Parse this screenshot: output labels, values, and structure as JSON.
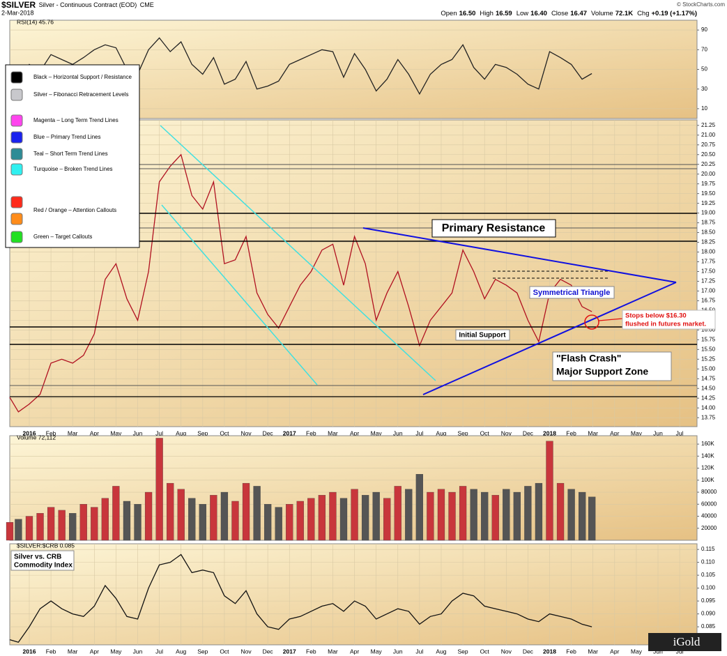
{
  "header": {
    "symbol": "$SILVER",
    "description": "Silver - Continuous Contract (EOD)",
    "exchange": "CME",
    "date": "2-Mar-2018",
    "source": "© StockCharts.com",
    "quote": [
      {
        "label": "Open",
        "value": "16.50"
      },
      {
        "label": "High",
        "value": "16.59"
      },
      {
        "label": "Low",
        "value": "16.40"
      },
      {
        "label": "Close",
        "value": "16.47"
      },
      {
        "label": "Volume",
        "value": "72.1K"
      },
      {
        "label": "Chg",
        "value": "+0.19 (+1.17%)"
      }
    ]
  },
  "legend": {
    "entries": [
      {
        "label": "Black – Horizontal Support / Resistance",
        "colors": [
          "#000000"
        ]
      },
      {
        "label": "Silver – Fibonacci Retracement Levels",
        "colors": [
          "#c8c8cc"
        ]
      },
      {
        "label": "Magenta – Long Term Trend Lines",
        "colors": [
          "#ff44ee"
        ]
      },
      {
        "label": "Blue – Primary Trend Lines",
        "colors": [
          "#1a22ee"
        ]
      },
      {
        "label": "Teal – Short Term Trend Lines",
        "colors": [
          "#2e8c96"
        ]
      },
      {
        "label": "Turquoise – Broken Trend Lines",
        "colors": [
          "#30f0f0"
        ]
      },
      {
        "label": "Red / Orange – Attention Callouts",
        "colors": [
          "#ff2a1a",
          "#ff8c1a"
        ]
      },
      {
        "label": "Green – Target Callouts",
        "colors": [
          "#22e022"
        ]
      }
    ]
  },
  "annotations": {
    "primary_resistance": "Primary Resistance",
    "symmetrical_triangle": "Symmetrical Triangle",
    "initial_support": "Initial Support",
    "flash_crash": [
      "\"Flash Crash\"",
      "Major Support Zone"
    ],
    "stops": [
      "Stops below $16.30",
      "flushed in futures market."
    ],
    "ratio_note": [
      "Silver vs. CRB",
      "Commodity Index"
    ],
    "logo": "iGold"
  },
  "chart_data": [
    {
      "type": "line",
      "label": "RSI(14) 45.76",
      "color": "#222222",
      "x": [
        -0.9,
        -0.5,
        0,
        0.5,
        1,
        1.5,
        2,
        2.5,
        3,
        3.5,
        4,
        4.5,
        5,
        5.5,
        6,
        6.5,
        7,
        7.5,
        8,
        8.5,
        9,
        9.5,
        10,
        10.5,
        11,
        11.5,
        12,
        12.5,
        13,
        13.5,
        14,
        14.5,
        15,
        15.5,
        16,
        16.5,
        17,
        17.5,
        18,
        18.5,
        19,
        19.5,
        20,
        20.5,
        21,
        21.5,
        22,
        22.5,
        23,
        23.5,
        24,
        24.5,
        25,
        25.5,
        25.95
      ],
      "values": [
        50,
        40,
        55,
        48,
        65,
        60,
        55,
        62,
        70,
        75,
        72,
        50,
        45,
        70,
        82,
        68,
        78,
        55,
        45,
        62,
        35,
        40,
        58,
        30,
        33,
        38,
        55,
        60,
        65,
        70,
        68,
        42,
        66,
        50,
        28,
        40,
        60,
        45,
        25,
        45,
        55,
        60,
        75,
        52,
        40,
        55,
        52,
        45,
        35,
        30,
        68,
        62,
        55,
        40,
        45.76
      ],
      "xlim": [
        -0.9,
        30.8
      ],
      "ylim": [
        0,
        100
      ],
      "yticks": [
        10,
        30,
        50,
        70,
        90
      ],
      "grid": true
    },
    {
      "type": "line",
      "color": "#b01020",
      "x": [
        -0.9,
        -0.5,
        0,
        0.5,
        1,
        1.5,
        2,
        2.5,
        3,
        3.5,
        4,
        4.5,
        5,
        5.5,
        6,
        6.5,
        7,
        7.5,
        8,
        8.5,
        9,
        9.5,
        10,
        10.5,
        11,
        11.5,
        12,
        12.5,
        13,
        13.5,
        14,
        14.5,
        15,
        15.5,
        16,
        16.5,
        17,
        17.5,
        18,
        18.5,
        19,
        19.5,
        20,
        20.5,
        21,
        21.5,
        22,
        22.5,
        23,
        23.5,
        24,
        24.5,
        25,
        25.5,
        25.95
      ],
      "values": [
        14.27,
        13.9,
        14.1,
        14.35,
        15.15,
        15.25,
        15.15,
        15.35,
        15.9,
        17.3,
        17.7,
        16.8,
        16.25,
        17.5,
        19.8,
        20.2,
        20.5,
        19.45,
        19.1,
        19.8,
        17.7,
        17.8,
        18.4,
        16.95,
        16.4,
        16.05,
        16.6,
        17.15,
        17.5,
        18.05,
        18.2,
        17.15,
        18.4,
        17.7,
        16.25,
        16.95,
        17.5,
        16.6,
        15.6,
        16.25,
        16.6,
        16.95,
        18.05,
        17.5,
        16.8,
        17.3,
        17.15,
        16.95,
        16.25,
        15.7,
        16.95,
        17.3,
        17.15,
        16.6,
        16.47
      ],
      "xlim": [
        -0.9,
        30.8
      ],
      "ylim": [
        13.52,
        21.39
      ],
      "yticks": [
        13.75,
        {
          "value": 14,
          "label": "14.00"
        },
        14.25,
        {
          "value": 14.5,
          "label": "14.50"
        },
        14.75,
        {
          "value": 15,
          "label": "15.00"
        },
        15.25,
        {
          "value": 15.5,
          "label": "15.50"
        },
        15.75,
        {
          "value": 16,
          "label": "16.00"
        },
        16.25,
        {
          "value": 16.5,
          "label": "16.50"
        },
        16.75,
        {
          "value": 17,
          "label": "17.00"
        },
        17.25,
        {
          "value": 17.5,
          "label": "17.50"
        },
        17.75,
        {
          "value": 18,
          "label": "18.00"
        },
        18.25,
        {
          "value": 18.5,
          "label": "18.50"
        },
        18.75,
        {
          "value": 19,
          "label": "19.00"
        },
        19.25,
        {
          "value": 19.5,
          "label": "19.50"
        },
        19.75,
        {
          "value": 20,
          "label": "20.00"
        },
        20.25,
        {
          "value": 20.5,
          "label": "20.50"
        },
        20.75,
        {
          "value": 21,
          "label": "21.00"
        },
        21.25
      ],
      "xticks": [
        {
          "value": 0,
          "label": "2016"
        },
        {
          "value": 1,
          "label": "Feb"
        },
        {
          "value": 2,
          "label": "Mar"
        },
        {
          "value": 3,
          "label": "Apr"
        },
        {
          "value": 4,
          "label": "May"
        },
        {
          "value": 5,
          "label": "Jun"
        },
        {
          "value": 6,
          "label": "Jul"
        },
        {
          "value": 7,
          "label": "Aug"
        },
        {
          "value": 8,
          "label": "Sep"
        },
        {
          "value": 9,
          "label": "Oct"
        },
        {
          "value": 10,
          "label": "Nov"
        },
        {
          "value": 11,
          "label": "Dec"
        },
        {
          "value": 12,
          "label": "2017"
        },
        {
          "value": 13,
          "label": "Feb"
        },
        {
          "value": 14,
          "label": "Mar"
        },
        {
          "value": 15,
          "label": "Apr"
        },
        {
          "value": 16,
          "label": "May"
        },
        {
          "value": 17,
          "label": "Jun"
        },
        {
          "value": 18,
          "label": "Jul"
        },
        {
          "value": 19,
          "label": "Aug"
        },
        {
          "value": 20,
          "label": "Sep"
        },
        {
          "value": 21,
          "label": "Oct"
        },
        {
          "value": 22,
          "label": "Nov"
        },
        {
          "value": 23,
          "label": "Dec"
        },
        {
          "value": 24,
          "label": "2018"
        },
        {
          "value": 25,
          "label": "Feb"
        },
        {
          "value": 26,
          "label": "Mar"
        },
        {
          "value": 27,
          "label": "Apr"
        },
        {
          "value": 28,
          "label": "May"
        },
        {
          "value": 29,
          "label": "Jun"
        },
        {
          "value": 30,
          "label": "Jul"
        }
      ],
      "grid": true
    },
    {
      "type": "bar",
      "label": "Volume 72,112",
      "up_color": "#c8363c",
      "down_color": "#555555",
      "x": [
        -0.9,
        -0.5,
        0,
        0.5,
        1,
        1.5,
        2,
        2.5,
        3,
        3.5,
        4,
        4.5,
        5,
        5.5,
        6,
        6.5,
        7,
        7.5,
        8,
        8.5,
        9,
        9.5,
        10,
        10.5,
        11,
        11.5,
        12,
        12.5,
        13,
        13.5,
        14,
        14.5,
        15,
        15.5,
        16,
        16.5,
        17,
        17.5,
        18,
        18.5,
        19,
        19.5,
        20,
        20.5,
        21,
        21.5,
        22,
        22.5,
        23,
        23.5,
        24,
        24.5,
        25,
        25.5,
        25.95
      ],
      "values": [
        30000,
        35000,
        40000,
        45000,
        55000,
        50000,
        45000,
        60000,
        55000,
        70000,
        90000,
        65000,
        60000,
        80000,
        170000,
        95000,
        85000,
        70000,
        60000,
        75000,
        80000,
        65000,
        95000,
        90000,
        60000,
        55000,
        60000,
        65000,
        70000,
        75000,
        80000,
        70000,
        85000,
        75000,
        80000,
        70000,
        90000,
        85000,
        110000,
        80000,
        85000,
        80000,
        90000,
        85000,
        80000,
        75000,
        85000,
        80000,
        90000,
        95000,
        165000,
        95000,
        85000,
        80000,
        72112
      ],
      "xlim": [
        -0.9,
        30.8
      ],
      "ylim": [
        0,
        174000
      ],
      "yticks": [
        20000,
        40000,
        60000,
        80000,
        {
          "value": 100000,
          "label": "100K"
        },
        {
          "value": 120000,
          "label": "120K"
        },
        {
          "value": 140000,
          "label": "140K"
        },
        {
          "value": 160000,
          "label": "160K"
        }
      ],
      "grid": true
    },
    {
      "type": "line",
      "label": "$SILVER:$CRB 0.085",
      "color": "#111111",
      "x": [
        -0.9,
        -0.5,
        0,
        0.5,
        1,
        1.5,
        2,
        2.5,
        3,
        3.5,
        4,
        4.5,
        5,
        5.5,
        6,
        6.5,
        7,
        7.5,
        8,
        8.5,
        9,
        9.5,
        10,
        10.5,
        11,
        11.5,
        12,
        12.5,
        13,
        13.5,
        14,
        14.5,
        15,
        15.5,
        16,
        16.5,
        17,
        17.5,
        18,
        18.5,
        19,
        19.5,
        20,
        20.5,
        21,
        21.5,
        22,
        22.5,
        23,
        23.5,
        24,
        24.5,
        25,
        25.5,
        25.95
      ],
      "values": [
        0.08,
        0.079,
        0.085,
        0.092,
        0.095,
        0.092,
        0.09,
        0.089,
        0.093,
        0.101,
        0.096,
        0.089,
        0.088,
        0.1,
        0.109,
        0.11,
        0.113,
        0.106,
        0.107,
        0.106,
        0.097,
        0.094,
        0.099,
        0.09,
        0.085,
        0.084,
        0.088,
        0.089,
        0.091,
        0.093,
        0.094,
        0.091,
        0.095,
        0.093,
        0.088,
        0.09,
        0.092,
        0.091,
        0.086,
        0.089,
        0.09,
        0.095,
        0.098,
        0.097,
        0.093,
        0.092,
        0.091,
        0.09,
        0.088,
        0.087,
        0.09,
        0.089,
        0.088,
        0.086,
        0.085
      ],
      "xlim": [
        -0.9,
        30.8
      ],
      "ylim": [
        0.078,
        0.1172
      ],
      "yticks": [
        0.085,
        {
          "value": 0.09,
          "label": "0.090"
        },
        0.095,
        {
          "value": 0.1,
          "label": "0.100"
        },
        0.105,
        {
          "value": 0.11,
          "label": "0.110"
        },
        0.115
      ],
      "xticks": [
        {
          "value": 0,
          "label": "2016"
        },
        {
          "value": 1,
          "label": "Feb"
        },
        {
          "value": 2,
          "label": "Mar"
        },
        {
          "value": 3,
          "label": "Apr"
        },
        {
          "value": 4,
          "label": "May"
        },
        {
          "value": 5,
          "label": "Jun"
        },
        {
          "value": 6,
          "label": "Jul"
        },
        {
          "value": 7,
          "label": "Aug"
        },
        {
          "value": 8,
          "label": "Sep"
        },
        {
          "value": 9,
          "label": "Oct"
        },
        {
          "value": 10,
          "label": "Nov"
        },
        {
          "value": 11,
          "label": "Dec"
        },
        {
          "value": 12,
          "label": "2017"
        },
        {
          "value": 13,
          "label": "Feb"
        },
        {
          "value": 14,
          "label": "Mar"
        },
        {
          "value": 15,
          "label": "Apr"
        },
        {
          "value": 16,
          "label": "May"
        },
        {
          "value": 17,
          "label": "Jun"
        },
        {
          "value": 18,
          "label": "Jul"
        },
        {
          "value": 19,
          "label": "Aug"
        },
        {
          "value": 20,
          "label": "Sep"
        },
        {
          "value": 21,
          "label": "Oct"
        },
        {
          "value": 22,
          "label": "Nov"
        },
        {
          "value": 23,
          "label": "Dec"
        },
        {
          "value": 24,
          "label": "2018"
        },
        {
          "value": 25,
          "label": "Feb"
        },
        {
          "value": 26,
          "label": "Mar"
        },
        {
          "value": 27,
          "label": "Apr"
        },
        {
          "value": 28,
          "label": "May"
        },
        {
          "value": 29,
          "label": "Jun"
        },
        {
          "value": 30,
          "label": "Jul"
        }
      ],
      "grid": true
    }
  ]
}
